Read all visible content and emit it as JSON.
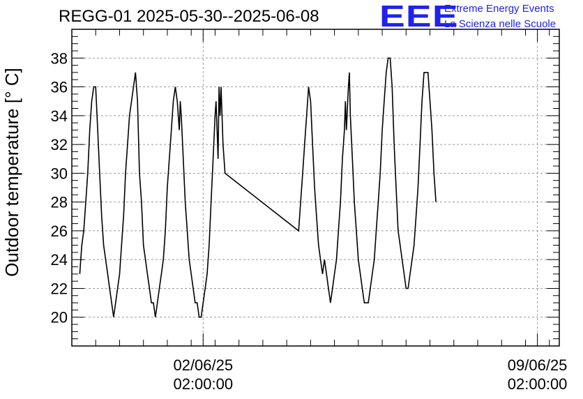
{
  "header": {
    "title": "REGG-01 2025-05-30--2025-06-08",
    "logo_text": "EEE",
    "org_line1": "Extreme Energy Events",
    "org_line2": "La Scienza nelle Scuole",
    "logo_color": "#1f22ee"
  },
  "chart_data": {
    "type": "line",
    "title": "REGG-01 2025-05-30--2025-06-08",
    "ylabel": "Outdoor temperature [° C]",
    "xlabel": "",
    "xlim": [
      "2025-05-30T08:00",
      "2025-06-09T13:00"
    ],
    "ylim": [
      18,
      40
    ],
    "yticks": [
      20,
      22,
      24,
      26,
      28,
      30,
      32,
      34,
      36,
      38
    ],
    "xticks": [
      {
        "x": "2025-06-02T02:00",
        "line1": "02/06/25",
        "line2": "02:00:00"
      },
      {
        "x": "2025-06-09T02:00",
        "line1": "09/06/25",
        "line2": "02:00:00"
      }
    ],
    "grid": true,
    "series": [
      {
        "color": "#000000",
        "points": [
          [
            "2025-05-30T12:00",
            23
          ],
          [
            "2025-05-30T12:30",
            24
          ],
          [
            "2025-05-30T13:00",
            25
          ],
          [
            "2025-05-30T14:00",
            26
          ],
          [
            "2025-05-30T15:00",
            28
          ],
          [
            "2025-05-30T16:00",
            30
          ],
          [
            "2025-05-30T17:00",
            33
          ],
          [
            "2025-05-30T18:00",
            35
          ],
          [
            "2025-05-30T19:00",
            36
          ],
          [
            "2025-05-30T20:00",
            36
          ],
          [
            "2025-05-30T21:00",
            33
          ],
          [
            "2025-05-30T22:00",
            30
          ],
          [
            "2025-05-30T23:00",
            27
          ],
          [
            "2025-05-31T00:00",
            25
          ],
          [
            "2025-05-31T01:00",
            24
          ],
          [
            "2025-05-31T02:00",
            23
          ],
          [
            "2025-05-31T03:00",
            22
          ],
          [
            "2025-05-31T04:00",
            21
          ],
          [
            "2025-05-31T05:00",
            20
          ],
          [
            "2025-05-31T06:00",
            21
          ],
          [
            "2025-05-31T07:00",
            22
          ],
          [
            "2025-05-31T08:00",
            23
          ],
          [
            "2025-05-31T09:00",
            25
          ],
          [
            "2025-05-31T10:00",
            27
          ],
          [
            "2025-05-31T11:00",
            30
          ],
          [
            "2025-05-31T12:00",
            32
          ],
          [
            "2025-05-31T13:00",
            34
          ],
          [
            "2025-05-31T14:00",
            35
          ],
          [
            "2025-05-31T15:00",
            36
          ],
          [
            "2025-05-31T16:00",
            37
          ],
          [
            "2025-05-31T17:00",
            35
          ],
          [
            "2025-05-31T18:00",
            30
          ],
          [
            "2025-05-31T19:00",
            28
          ],
          [
            "2025-05-31T20:00",
            25
          ],
          [
            "2025-05-31T21:00",
            24
          ],
          [
            "2025-05-31T22:00",
            23
          ],
          [
            "2025-05-31T23:00",
            22
          ],
          [
            "2025-06-01T00:00",
            21
          ],
          [
            "2025-06-01T01:00",
            21
          ],
          [
            "2025-06-01T02:00",
            20
          ],
          [
            "2025-06-01T03:00",
            21
          ],
          [
            "2025-06-01T04:00",
            22
          ],
          [
            "2025-06-01T05:00",
            23
          ],
          [
            "2025-06-01T06:00",
            24
          ],
          [
            "2025-06-01T07:00",
            26
          ],
          [
            "2025-06-01T08:00",
            29
          ],
          [
            "2025-06-01T09:00",
            31
          ],
          [
            "2025-06-01T10:00",
            33
          ],
          [
            "2025-06-01T11:00",
            35
          ],
          [
            "2025-06-01T12:00",
            36
          ],
          [
            "2025-06-01T13:00",
            35
          ],
          [
            "2025-06-01T14:00",
            33
          ],
          [
            "2025-06-01T14:30",
            35
          ],
          [
            "2025-06-01T15:00",
            34
          ],
          [
            "2025-06-01T16:00",
            31
          ],
          [
            "2025-06-01T17:00",
            28
          ],
          [
            "2025-06-01T18:00",
            26
          ],
          [
            "2025-06-01T19:00",
            24
          ],
          [
            "2025-06-01T20:00",
            23
          ],
          [
            "2025-06-01T21:00",
            22
          ],
          [
            "2025-06-01T22:00",
            21
          ],
          [
            "2025-06-01T23:00",
            21
          ],
          [
            "2025-06-02T00:00",
            20
          ],
          [
            "2025-06-02T01:00",
            20
          ],
          [
            "2025-06-02T02:00",
            21
          ],
          [
            "2025-06-02T03:00",
            22
          ],
          [
            "2025-06-02T04:00",
            23
          ],
          [
            "2025-06-02T05:00",
            25
          ],
          [
            "2025-06-02T06:00",
            28
          ],
          [
            "2025-06-02T07:00",
            31
          ],
          [
            "2025-06-02T08:00",
            34
          ],
          [
            "2025-06-02T08:30",
            35
          ],
          [
            "2025-06-02T09:00",
            33
          ],
          [
            "2025-06-02T09:30",
            31
          ],
          [
            "2025-06-02T10:00",
            36
          ],
          [
            "2025-06-02T10:30",
            34
          ],
          [
            "2025-06-02T11:00",
            36
          ],
          [
            "2025-06-02T11:30",
            34
          ],
          [
            "2025-06-02T12:00",
            32
          ],
          [
            "2025-06-02T13:00",
            30
          ],
          [
            "2025-06-04T02:00",
            26
          ],
          [
            "2025-06-04T03:00",
            28
          ],
          [
            "2025-06-04T04:00",
            30
          ],
          [
            "2025-06-04T05:00",
            32
          ],
          [
            "2025-06-04T05:30",
            33
          ],
          [
            "2025-06-04T06:00",
            34
          ],
          [
            "2025-06-04T07:00",
            36
          ],
          [
            "2025-06-04T08:00",
            35
          ],
          [
            "2025-06-04T09:00",
            32
          ],
          [
            "2025-06-04T10:00",
            29
          ],
          [
            "2025-06-04T11:00",
            27
          ],
          [
            "2025-06-04T12:00",
            25
          ],
          [
            "2025-06-04T13:00",
            24
          ],
          [
            "2025-06-04T14:00",
            23
          ],
          [
            "2025-06-04T15:00",
            24
          ],
          [
            "2025-06-04T16:00",
            23
          ],
          [
            "2025-06-04T17:00",
            22
          ],
          [
            "2025-06-04T18:00",
            21
          ],
          [
            "2025-06-04T19:00",
            22
          ],
          [
            "2025-06-04T20:00",
            23
          ],
          [
            "2025-06-04T21:00",
            24
          ],
          [
            "2025-06-04T22:00",
            26
          ],
          [
            "2025-06-04T23:00",
            28
          ],
          [
            "2025-06-05T00:00",
            31
          ],
          [
            "2025-06-05T01:00",
            33
          ],
          [
            "2025-06-05T01:30",
            35
          ],
          [
            "2025-06-05T02:00",
            33
          ],
          [
            "2025-06-05T03:00",
            36
          ],
          [
            "2025-06-05T03:30",
            37
          ],
          [
            "2025-06-05T04:00",
            34
          ],
          [
            "2025-06-05T05:00",
            31
          ],
          [
            "2025-06-05T06:00",
            28
          ],
          [
            "2025-06-05T07:00",
            26
          ],
          [
            "2025-06-05T08:00",
            24
          ],
          [
            "2025-06-05T09:00",
            23
          ],
          [
            "2025-06-05T10:00",
            22
          ],
          [
            "2025-06-05T11:00",
            21
          ],
          [
            "2025-06-05T12:00",
            21
          ],
          [
            "2025-06-05T13:00",
            21
          ],
          [
            "2025-06-05T14:00",
            22
          ],
          [
            "2025-06-05T15:00",
            23
          ],
          [
            "2025-06-05T16:00",
            24
          ],
          [
            "2025-06-05T17:00",
            26
          ],
          [
            "2025-06-05T18:00",
            28
          ],
          [
            "2025-06-05T19:00",
            30
          ],
          [
            "2025-06-05T20:00",
            33
          ],
          [
            "2025-06-05T21:00",
            35
          ],
          [
            "2025-06-05T22:00",
            37
          ],
          [
            "2025-06-05T23:00",
            38
          ],
          [
            "2025-06-06T00:00",
            38
          ],
          [
            "2025-06-06T01:00",
            36
          ],
          [
            "2025-06-06T02:00",
            32
          ],
          [
            "2025-06-06T03:00",
            29
          ],
          [
            "2025-06-06T04:00",
            26
          ],
          [
            "2025-06-06T05:00",
            25
          ],
          [
            "2025-06-06T06:00",
            24
          ],
          [
            "2025-06-06T07:00",
            23
          ],
          [
            "2025-06-06T08:00",
            22
          ],
          [
            "2025-06-06T09:00",
            22
          ],
          [
            "2025-06-06T10:00",
            23
          ],
          [
            "2025-06-06T11:00",
            24
          ],
          [
            "2025-06-06T12:00",
            25
          ],
          [
            "2025-06-06T13:00",
            27
          ],
          [
            "2025-06-06T14:00",
            29
          ],
          [
            "2025-06-06T15:00",
            32
          ],
          [
            "2025-06-06T16:00",
            35
          ],
          [
            "2025-06-06T17:00",
            37
          ],
          [
            "2025-06-06T18:00",
            37
          ],
          [
            "2025-06-06T19:00",
            37
          ],
          [
            "2025-06-06T20:00",
            35
          ],
          [
            "2025-06-06T21:00",
            33
          ],
          [
            "2025-06-06T22:00",
            30
          ],
          [
            "2025-06-06T23:00",
            28
          ]
        ]
      }
    ]
  }
}
